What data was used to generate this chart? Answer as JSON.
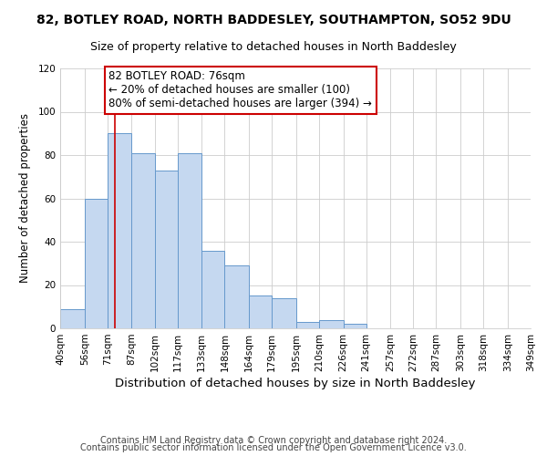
{
  "title": "82, BOTLEY ROAD, NORTH BADDESLEY, SOUTHAMPTON, SO52 9DU",
  "subtitle": "Size of property relative to detached houses in North Baddesley",
  "xlabel": "Distribution of detached houses by size in North Baddesley",
  "ylabel": "Number of detached properties",
  "bin_edges": [
    40,
    56,
    71,
    87,
    102,
    117,
    133,
    148,
    164,
    179,
    195,
    210,
    226,
    241,
    257,
    272,
    287,
    303,
    318,
    334,
    349
  ],
  "bar_heights": [
    9,
    60,
    90,
    81,
    73,
    81,
    36,
    29,
    15,
    14,
    3,
    4,
    2,
    0,
    0,
    0,
    0,
    0,
    0,
    0
  ],
  "bar_color": "#c5d8f0",
  "bar_edge_color": "#6699cc",
  "vline_x": 76,
  "vline_color": "#cc0000",
  "ylim": [
    0,
    120
  ],
  "annotation_text": "82 BOTLEY ROAD: 76sqm\n← 20% of detached houses are smaller (100)\n80% of semi-detached houses are larger (394) →",
  "footer1": "Contains HM Land Registry data © Crown copyright and database right 2024.",
  "footer2": "Contains public sector information licensed under the Open Government Licence v3.0.",
  "background_color": "#ffffff",
  "grid_color": "#cccccc",
  "title_fontsize": 10,
  "subtitle_fontsize": 9,
  "xlabel_fontsize": 9.5,
  "ylabel_fontsize": 8.5,
  "tick_fontsize": 7.5,
  "annotation_fontsize": 8.5,
  "footer_fontsize": 7
}
